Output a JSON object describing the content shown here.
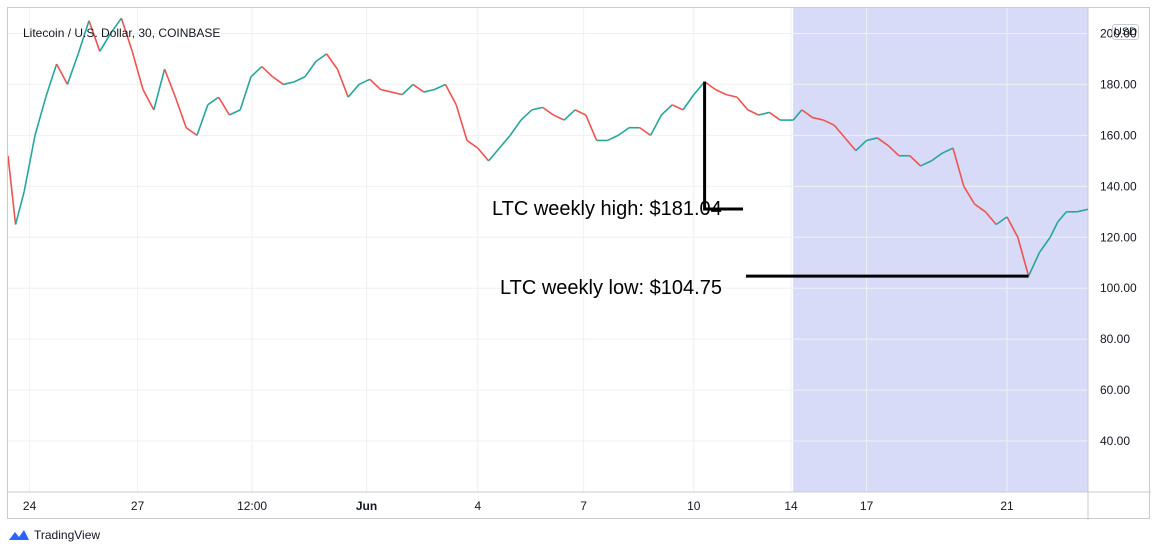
{
  "header": {
    "title": "Litecoin / U.S. Dollar, 30, COINBASE"
  },
  "currency": "USD",
  "brand": {
    "name": "TradingView",
    "color": "#2962ff"
  },
  "annotations": {
    "high_label": "LTC weekly high: $181.04",
    "low_label": "LTC weekly low: $104.75"
  },
  "colors": {
    "up": "#26a69a",
    "down": "#ef5350",
    "highlight": "#d8dbf7",
    "grid": "#eef0f3",
    "axis_line": "#c8cbd3"
  },
  "chart_data": {
    "type": "line",
    "symbol": "LTC/USD",
    "interval": "30",
    "exchange": "COINBASE",
    "ylim": [
      20,
      210
    ],
    "y_ticks": [
      "200.00",
      "180.00",
      "160.00",
      "140.00",
      "120.00",
      "100.00",
      "80.00",
      "60.00",
      "40.00"
    ],
    "x_ticks": [
      "24",
      "27",
      "12:00",
      "Jun",
      "4",
      "7",
      "10",
      "14",
      "17",
      "21"
    ],
    "x_ticks_bold": [
      "Jun"
    ],
    "x_range": [
      0,
      100
    ],
    "grid": true,
    "highlight_range": [
      72.7,
      100
    ],
    "series": [
      {
        "x": [
          0,
          0.7,
          1.5,
          2.5,
          3.5,
          4.5,
          5.5,
          6.5,
          7.5,
          8.5,
          9.5,
          10.5,
          11.5,
          12.5,
          13.5,
          14.5,
          15.5,
          16.5,
          17.5,
          18.5,
          19.5,
          20.5,
          21.5,
          22.5,
          23.5,
          24.5,
          25.5,
          26.5,
          27.5,
          28.5,
          29.5,
          30.5,
          31.5,
          32.5,
          33.5,
          34.5,
          35.5,
          36.5,
          37.5,
          38.5,
          39.5,
          40.5,
          41.5,
          42.5,
          43.5,
          44.5,
          45.5,
          46.5,
          47.5,
          48.5,
          49.5,
          50.5,
          51.5,
          52.5,
          53.5,
          54.5,
          55.5,
          56.5,
          57.5,
          58.5,
          59.5,
          60.5,
          61.5,
          62.5,
          63.5,
          64.5,
          65.5,
          66.5,
          67.5,
          68.5,
          69.5,
          70.5,
          71.5,
          72.7,
          73.5,
          74.5,
          75.5,
          76.5,
          77.5,
          78.5,
          79.5,
          80.5,
          81.5,
          82.5,
          83.5,
          84.5,
          85.5,
          86.5,
          87.5,
          88.5,
          89.5,
          90.5,
          91.5,
          92.5,
          93.5,
          94.5,
          95.5,
          96.5,
          97.2,
          98,
          99,
          100
        ],
        "values": [
          152,
          125,
          138,
          160,
          175,
          188,
          180,
          192,
          205,
          193,
          200,
          206,
          193,
          178,
          170,
          186,
          175,
          163,
          160,
          172,
          175,
          168,
          170,
          183,
          187,
          183,
          180,
          181,
          183,
          189,
          192,
          186,
          175,
          180,
          182,
          178,
          177,
          176,
          180,
          177,
          178,
          180,
          172,
          158,
          155,
          150,
          155,
          160,
          166,
          170,
          171,
          168,
          166,
          170,
          168,
          158,
          158,
          160,
          163,
          163,
          160,
          168,
          172,
          170,
          176,
          181.04,
          178,
          176,
          175,
          170,
          168,
          169,
          166,
          166,
          170,
          167,
          166,
          164,
          159,
          154,
          158,
          159,
          156,
          152,
          152,
          148,
          150,
          153,
          155,
          140,
          133,
          130,
          125,
          128,
          120,
          104.75,
          114,
          120,
          126,
          130,
          130,
          131
        ]
      }
    ],
    "weekly_high": 181.04,
    "weekly_low": 104.75
  }
}
